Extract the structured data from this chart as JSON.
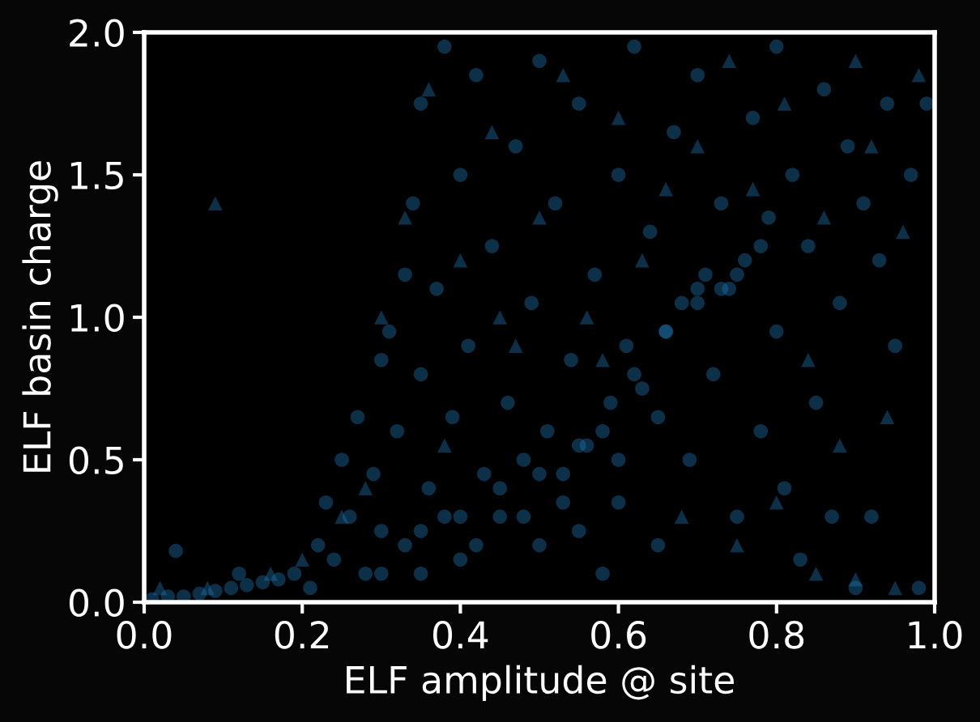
{
  "chart_data": {
    "type": "scatter",
    "xlabel": "ELF amplitude @ site",
    "ylabel": "ELF basin charge",
    "xlim": [
      0,
      1
    ],
    "ylim": [
      0,
      2
    ],
    "xticks": [
      {
        "value": 0,
        "label": "0.0"
      },
      0.2,
      0.4,
      0.6,
      0.8,
      {
        "value": 1,
        "label": "1.0"
      }
    ],
    "yticks": [
      {
        "value": 0,
        "label": "0.0"
      },
      0.5,
      {
        "value": 1,
        "label": "1.0"
      },
      1.5,
      {
        "value": 2,
        "label": "2.0"
      }
    ],
    "grid": false,
    "series": [
      {
        "color": "#1f77b4",
        "marker": "circle",
        "x": [
          0.01,
          0.03,
          0.05,
          0.07,
          0.09,
          0.11,
          0.13,
          0.15,
          0.17,
          0.19,
          0.04,
          0.12,
          0.21,
          0.22,
          0.23,
          0.24,
          0.25,
          0.26,
          0.27,
          0.28,
          0.29,
          0.3,
          0.3,
          0.31,
          0.32,
          0.33,
          0.33,
          0.34,
          0.35,
          0.35,
          0.36,
          0.37,
          0.38,
          0.38,
          0.39,
          0.4,
          0.4,
          0.41,
          0.42,
          0.43,
          0.44,
          0.45,
          0.46,
          0.47,
          0.48,
          0.49,
          0.5,
          0.5,
          0.51,
          0.52,
          0.53,
          0.54,
          0.55,
          0.56,
          0.57,
          0.58,
          0.59,
          0.6,
          0.6,
          0.61,
          0.62,
          0.63,
          0.64,
          0.65,
          0.66,
          0.67,
          0.68,
          0.69,
          0.7,
          0.7,
          0.71,
          0.72,
          0.73,
          0.74,
          0.75,
          0.76,
          0.77,
          0.78,
          0.79,
          0.8,
          0.8,
          0.81,
          0.82,
          0.83,
          0.84,
          0.85,
          0.86,
          0.87,
          0.88,
          0.89,
          0.9,
          0.91,
          0.92,
          0.93,
          0.94,
          0.95,
          0.97,
          0.98,
          0.99,
          0.35,
          0.4,
          0.45,
          0.5,
          0.55,
          0.58,
          0.62,
          0.66,
          0.7,
          0.73,
          0.75,
          0.78,
          0.3,
          0.35,
          0.42,
          0.48,
          0.53,
          0.6,
          0.65,
          0.55
        ],
        "values": [
          0.01,
          0.02,
          0.02,
          0.03,
          0.04,
          0.05,
          0.06,
          0.07,
          0.08,
          0.1,
          0.18,
          0.1,
          0.05,
          0.2,
          0.35,
          0.15,
          0.5,
          0.3,
          0.65,
          0.1,
          0.45,
          0.85,
          0.25,
          0.95,
          0.6,
          1.15,
          0.2,
          1.4,
          0.8,
          1.75,
          0.4,
          1.1,
          1.95,
          0.3,
          0.65,
          1.5,
          0.15,
          0.9,
          1.85,
          0.45,
          1.25,
          0.3,
          0.7,
          1.6,
          0.5,
          1.05,
          0.2,
          1.9,
          0.6,
          1.4,
          0.45,
          0.85,
          1.75,
          0.55,
          1.15,
          0.1,
          0.7,
          1.5,
          0.35,
          0.9,
          1.95,
          0.75,
          1.3,
          0.2,
          0.95,
          1.65,
          1.05,
          0.5,
          1.1,
          1.85,
          1.15,
          0.8,
          1.4,
          1.1,
          0.3,
          1.2,
          1.7,
          0.6,
          1.35,
          0.95,
          1.95,
          0.4,
          1.5,
          0.15,
          1.25,
          0.7,
          1.8,
          0.3,
          1.05,
          1.6,
          0.05,
          1.4,
          0.3,
          1.2,
          1.75,
          0.9,
          1.5,
          0.05,
          1.75,
          0.25,
          0.3,
          0.4,
          0.45,
          0.55,
          0.6,
          0.8,
          0.95,
          1.05,
          1.1,
          1.15,
          1.25,
          0.1,
          0.1,
          0.2,
          0.3,
          0.35,
          0.5,
          0.65,
          0.25
        ]
      },
      {
        "color": "#1f77b4",
        "marker": "triangle",
        "x": [
          0.09,
          0.02,
          0.08,
          0.16,
          0.25,
          0.3,
          0.33,
          0.36,
          0.4,
          0.44,
          0.47,
          0.5,
          0.53,
          0.56,
          0.6,
          0.63,
          0.66,
          0.7,
          0.74,
          0.77,
          0.81,
          0.84,
          0.86,
          0.88,
          0.9,
          0.92,
          0.94,
          0.96,
          0.98,
          0.85,
          0.9,
          0.95,
          0.8,
          0.75,
          0.68,
          0.58,
          0.45,
          0.38,
          0.28,
          0.2
        ],
        "values": [
          1.4,
          0.05,
          0.05,
          0.1,
          0.3,
          1.0,
          1.35,
          1.8,
          1.2,
          1.65,
          0.9,
          1.35,
          1.85,
          1.0,
          1.7,
          1.2,
          1.45,
          1.6,
          1.9,
          1.45,
          1.75,
          0.85,
          1.35,
          0.55,
          1.9,
          1.6,
          0.65,
          1.3,
          1.85,
          0.1,
          0.08,
          0.05,
          0.35,
          0.2,
          0.3,
          0.85,
          1.0,
          0.55,
          0.4,
          0.15
        ]
      }
    ]
  }
}
